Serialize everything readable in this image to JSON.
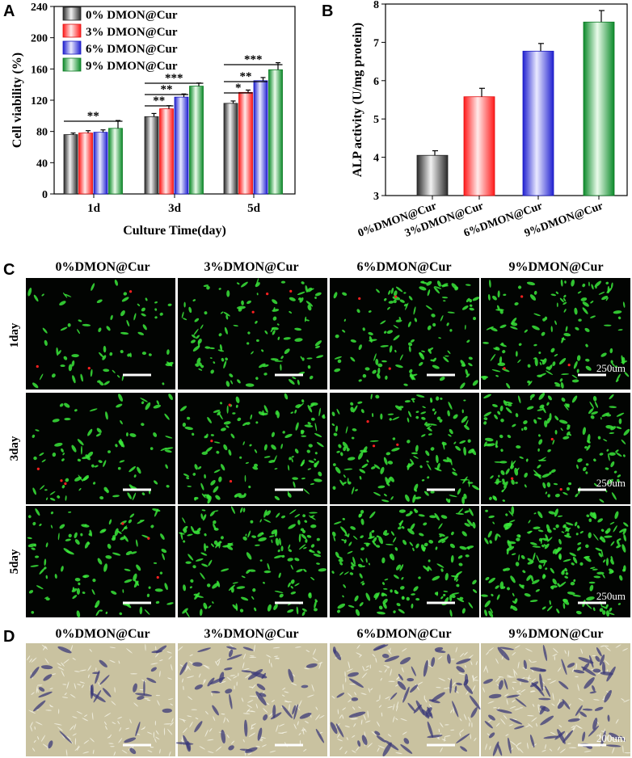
{
  "figure": {
    "panels": {
      "A": {
        "letter": "A"
      },
      "B": {
        "letter": "B"
      },
      "C": {
        "letter": "C",
        "column_titles": [
          "0%DMON@Cur",
          "3%DMON@Cur",
          "6%DMON@Cur",
          "9%DMON@Cur"
        ],
        "row_labels": [
          "1day",
          "3day",
          "5day"
        ],
        "scale_label": "250um"
      },
      "D": {
        "letter": "D",
        "column_titles": [
          "0%DMON@Cur",
          "3%DMON@Cur",
          "6%DMON@Cur",
          "9%DMON@Cur"
        ],
        "scale_label": "200um"
      }
    },
    "colors": {
      "gray": "#4a4a4a",
      "red": "#ff3b3b",
      "blue": "#3a3ad8",
      "green": "#1e9e3a",
      "fluor_green": "#39e639",
      "fluor_red": "#ff2020",
      "stain_bg": "#c9c2a0",
      "stain_cell": "#3b3a78"
    }
  },
  "chart_data": [
    {
      "type": "bar",
      "panel": "A",
      "xlabel": "Culture Time(day)",
      "ylabel": "Cell viability (%)",
      "categories": [
        "1d",
        "3d",
        "5d"
      ],
      "ylim": [
        0,
        240
      ],
      "yticks": [
        0,
        40,
        80,
        120,
        160,
        200,
        240
      ],
      "legend_position": "top-left",
      "series": [
        {
          "name": "0% DMON@Cur",
          "values": [
            76,
            99,
            116
          ],
          "errors": [
            2,
            4,
            3
          ]
        },
        {
          "name": "3% DMON@Cur",
          "values": [
            78,
            109,
            130
          ],
          "errors": [
            3,
            4,
            3
          ]
        },
        {
          "name": "6% DMON@Cur",
          "values": [
            79,
            124,
            145
          ],
          "errors": [
            3,
            4,
            4
          ]
        },
        {
          "name": "9% DMON@Cur",
          "values": [
            84,
            138,
            159
          ],
          "errors": [
            10,
            4,
            9
          ]
        }
      ],
      "significance": [
        {
          "group": "1d",
          "from": 0,
          "to": 3,
          "label": "**"
        },
        {
          "group": "3d",
          "from": 0,
          "to": 1,
          "label": "**"
        },
        {
          "group": "3d",
          "from": 0,
          "to": 2,
          "label": "**"
        },
        {
          "group": "3d",
          "from": 0,
          "to": 3,
          "label": "***"
        },
        {
          "group": "5d",
          "from": 0,
          "to": 1,
          "label": "*"
        },
        {
          "group": "5d",
          "from": 0,
          "to": 2,
          "label": "**"
        },
        {
          "group": "5d",
          "from": 0,
          "to": 3,
          "label": "***"
        }
      ]
    },
    {
      "type": "bar",
      "panel": "B",
      "xlabel": "",
      "ylabel": "ALP activity (U/mg protein)",
      "categories": [
        "0%DMON@Cur",
        "3%DMON@Cur",
        "6%DMON@Cur",
        "9%DMON@Cur"
      ],
      "ylim": [
        3,
        8
      ],
      "yticks": [
        3,
        4,
        5,
        6,
        7,
        8
      ],
      "values": [
        4.05,
        5.58,
        6.77,
        7.53
      ],
      "errors": [
        0.12,
        0.22,
        0.2,
        0.3
      ]
    }
  ]
}
